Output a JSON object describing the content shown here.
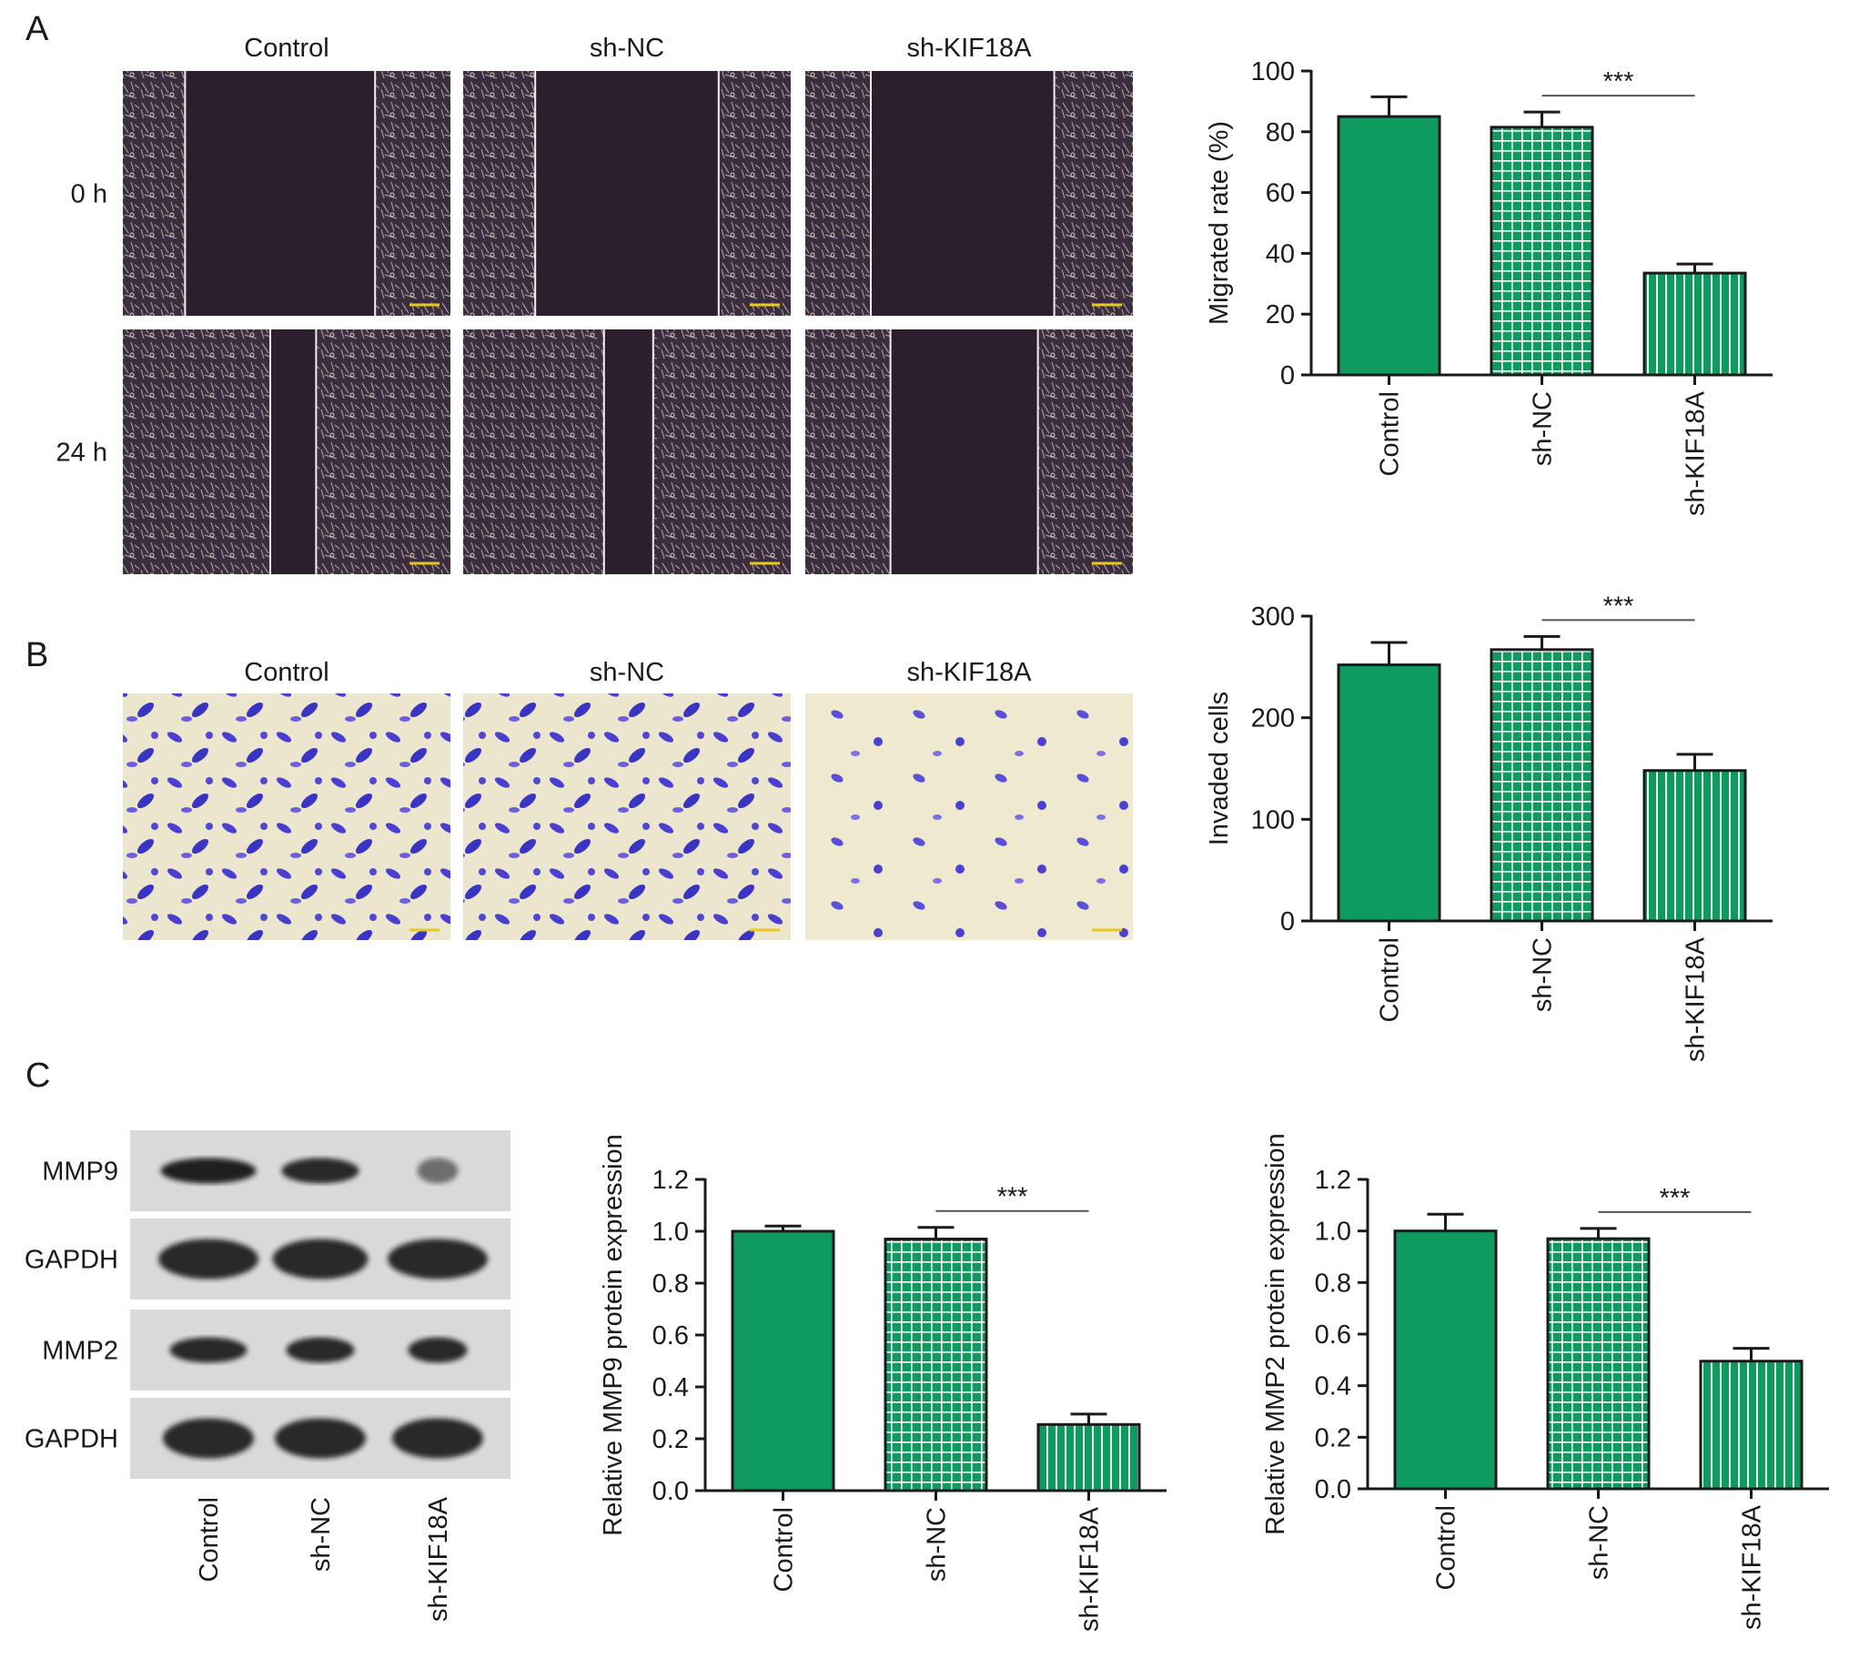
{
  "panel_labels": [
    "A",
    "B",
    "C"
  ],
  "wound_healing": {
    "groups": [
      "Control",
      "sh-NC",
      "sh-KIF18A"
    ],
    "timepoints": [
      "0 h",
      "24 h"
    ]
  },
  "invasion": {
    "groups": [
      "Control",
      "sh-NC",
      "sh-KIF18A"
    ]
  },
  "western_blot": {
    "proteins": [
      "MMP9",
      "GAPDH",
      "MMP2",
      "GAPDH"
    ],
    "lanes": [
      "Control",
      "sh-NC",
      "sh-KIF18A"
    ]
  },
  "chart_data": [
    {
      "type": "bar",
      "ylabel": "Migrated rate (%)",
      "categories": [
        "Control",
        "sh-NC",
        "sh-KIF18A"
      ],
      "values": [
        85,
        81.5,
        33.5
      ],
      "errors": [
        6.5,
        5,
        3
      ],
      "color": "#0f9a60",
      "patterns": [
        "solid",
        "grid",
        "vertical-stripes"
      ],
      "annotation": "***",
      "ylim": [
        0,
        100
      ],
      "yticks": [
        0,
        20,
        40,
        60,
        80,
        100
      ]
    },
    {
      "type": "bar",
      "ylabel": "Invaded cells",
      "categories": [
        "Control",
        "sh-NC",
        "sh-KIF18A"
      ],
      "values": [
        252,
        267,
        148
      ],
      "errors": [
        22,
        13,
        16
      ],
      "color": "#0f9a60",
      "patterns": [
        "solid",
        "grid",
        "vertical-stripes"
      ],
      "annotation": "***",
      "ylim": [
        0,
        300
      ],
      "yticks": [
        0,
        100,
        200,
        300
      ]
    },
    {
      "type": "bar",
      "ylabel": "Relative MMP9 protein expression",
      "categories": [
        "Control",
        "sh-NC",
        "sh-KIF18A"
      ],
      "values": [
        1.0,
        0.97,
        0.255
      ],
      "errors": [
        0.02,
        0.045,
        0.04
      ],
      "color": "#0f9a60",
      "patterns": [
        "solid",
        "grid",
        "vertical-stripes"
      ],
      "annotation": "***",
      "ylim": [
        0,
        1.2
      ],
      "yticks": [
        {
          "value": 0,
          "label": "0.0"
        },
        0.2,
        0.4,
        0.6,
        0.8,
        {
          "value": 1,
          "label": "1.0"
        },
        1.2
      ]
    },
    {
      "type": "bar",
      "ylabel": "Relative MMP2 protein expression",
      "categories": [
        "Control",
        "sh-NC",
        "sh-KIF18A"
      ],
      "values": [
        1.0,
        0.97,
        0.495
      ],
      "errors": [
        0.065,
        0.04,
        0.05
      ],
      "color": "#0f9a60",
      "patterns": [
        "solid",
        "grid",
        "vertical-stripes"
      ],
      "annotation": "***",
      "ylim": [
        0,
        1.2
      ],
      "yticks": [
        {
          "value": 0,
          "label": "0.0"
        },
        0.2,
        0.4,
        0.6,
        0.8,
        {
          "value": 1,
          "label": "1.0"
        },
        1.2
      ]
    }
  ]
}
